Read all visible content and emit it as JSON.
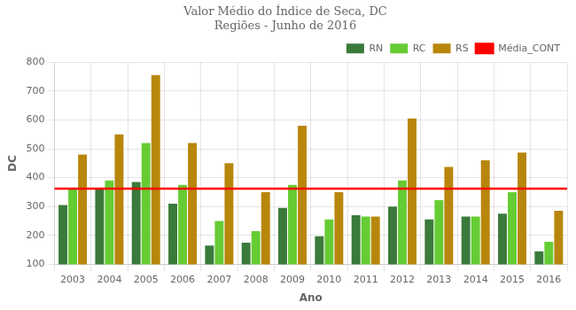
{
  "chart_data": {
    "type": "bar",
    "title": "Valor Médio do Índice de Seca, DC\nRegiões - Junho de 2016",
    "x_label": "Ano",
    "y_label": "DC",
    "categories": [
      "2003",
      "2004",
      "2005",
      "2006",
      "2007",
      "2008",
      "2009",
      "2010",
      "2011",
      "2012",
      "2013",
      "2014",
      "2015",
      "2016"
    ],
    "series": [
      {
        "name": "RN",
        "color": "#3a7a3a",
        "values": [
          305,
          360,
          385,
          310,
          165,
          175,
          295,
          197,
          270,
          300,
          255,
          265,
          275,
          145
        ]
      },
      {
        "name": "RC",
        "color": "#66cc33",
        "values": [
          360,
          390,
          520,
          375,
          250,
          215,
          375,
          255,
          265,
          390,
          322,
          265,
          350,
          178
        ]
      },
      {
        "name": "RS",
        "color": "#b8860b",
        "values": [
          480,
          550,
          755,
          520,
          450,
          350,
          580,
          350,
          265,
          605,
          437,
          460,
          487,
          285
        ]
      }
    ],
    "hlines": [
      {
        "name": "Média_CONT",
        "value": 362,
        "color": "#ff0000"
      }
    ],
    "ylim": [
      100,
      800
    ],
    "yticks": [
      100,
      200,
      300,
      400,
      500,
      600,
      700,
      800
    ],
    "grid": true,
    "legend": "upper right"
  }
}
